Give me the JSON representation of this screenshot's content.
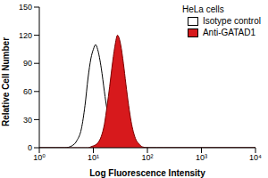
{
  "chart_data": {
    "type": "histogram",
    "title": "HeLa cells",
    "x_label": "Log Fluorescence Intensity",
    "y_label": "Relative Cell Number",
    "log": "x",
    "grid": false,
    "legend": "upper right",
    "xlim": [
      1,
      10000
    ],
    "xticks": [
      {
        "value": 1,
        "label": "10⁰"
      },
      {
        "value": 10,
        "label": "10¹"
      },
      {
        "value": 100,
        "label": "10²"
      },
      {
        "value": 1000,
        "label": "10³"
      },
      {
        "value": 10000,
        "label": "10⁴"
      }
    ],
    "ylim": [
      0,
      150
    ],
    "yticks": [
      0,
      30,
      60,
      90,
      120,
      150
    ],
    "x": [
      1,
      2,
      3,
      4,
      5,
      6,
      7,
      8,
      9,
      10,
      11,
      12,
      14,
      16,
      18,
      20,
      22,
      25,
      28,
      32,
      36,
      40,
      45,
      50,
      60,
      70,
      80,
      100,
      150,
      200,
      1000,
      10000
    ],
    "series": [
      {
        "name": "Isotype control",
        "color": "#ffffff",
        "values": [
          0,
          0,
          0,
          2,
          8,
          20,
          45,
          75,
          95,
          105,
          110,
          105,
          85,
          60,
          40,
          28,
          18,
          10,
          6,
          3,
          1,
          0,
          0,
          0,
          0,
          0,
          0,
          0,
          0,
          0,
          0,
          0
        ]
      },
      {
        "name": "Anti-GATAD1",
        "color": "#d7191c",
        "values": [
          0,
          0,
          0,
          0,
          0,
          0,
          0,
          0,
          1,
          2,
          3,
          5,
          12,
          25,
          45,
          65,
          85,
          108,
          120,
          110,
          90,
          68,
          45,
          28,
          10,
          4,
          1,
          0,
          0,
          0,
          0,
          0
        ]
      }
    ]
  }
}
